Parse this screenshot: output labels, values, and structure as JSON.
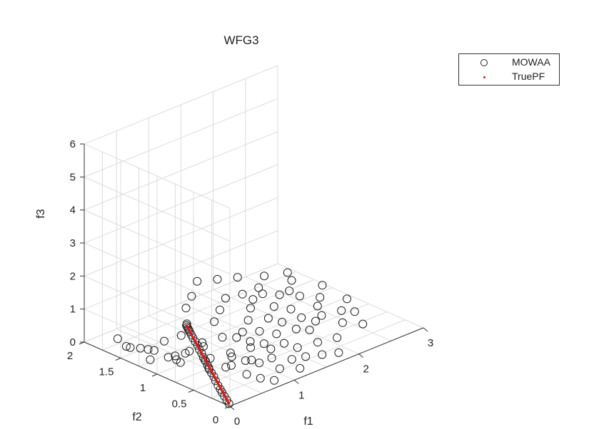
{
  "chart_data": {
    "type": "scatter",
    "projection": "3d",
    "title": "WFG3",
    "xlabel": "f1",
    "ylabel": "f2",
    "zlabel": "f3",
    "xlim": [
      0,
      3
    ],
    "ylim": [
      0,
      2
    ],
    "zlim": [
      0,
      6
    ],
    "xticks": [
      "0",
      "1",
      "2",
      "3"
    ],
    "yticks": [
      "0",
      "0.5",
      "1",
      "1.5",
      "2"
    ],
    "zticks": [
      "0",
      "1",
      "2",
      "3",
      "4",
      "5",
      "6"
    ],
    "grid": true,
    "legend_position": "top-right",
    "colors": {
      "mowaa": "#222222",
      "truepf": "#d41c1c",
      "grid": "#dcdcdc",
      "axis": "#333333"
    },
    "series": [
      {
        "name": "MOWAA",
        "marker": "circle-open",
        "points": [
          [
            0.02,
            0.03,
            0.03
          ],
          [
            0.04,
            0.08,
            0.08
          ],
          [
            0.06,
            0.13,
            0.13
          ],
          [
            0.08,
            0.18,
            0.18
          ],
          [
            0.1,
            0.22,
            0.22
          ],
          [
            0.12,
            0.27,
            0.27
          ],
          [
            0.15,
            0.33,
            0.33
          ],
          [
            0.18,
            0.38,
            0.38
          ],
          [
            0.2,
            0.43,
            0.43
          ],
          [
            0.22,
            0.48,
            0.48
          ],
          [
            0.25,
            0.53,
            0.53
          ],
          [
            0.28,
            0.58,
            0.58
          ],
          [
            0.3,
            0.63,
            0.63
          ],
          [
            0.33,
            0.68,
            0.68
          ],
          [
            0.35,
            0.73,
            0.73
          ],
          [
            0.38,
            0.78,
            0.78
          ],
          [
            0.4,
            0.83,
            0.83
          ],
          [
            0.42,
            0.88,
            0.88
          ],
          [
            0.44,
            0.92,
            0.92
          ],
          [
            0.46,
            0.96,
            0.96
          ],
          [
            0.47,
            0.98,
            0.98
          ],
          [
            0.48,
            1.0,
            1.0
          ],
          [
            0.49,
            1.02,
            1.02
          ],
          [
            0.5,
            1.04,
            1.04
          ],
          [
            0.4,
            1.2,
            0.0
          ],
          [
            0.35,
            1.35,
            0.1
          ],
          [
            0.2,
            1.6,
            0.1
          ],
          [
            0.25,
            1.45,
            0.15
          ],
          [
            0.45,
            1.15,
            0.05
          ],
          [
            0.5,
            1.0,
            0.3
          ],
          [
            0.55,
            1.1,
            0.1
          ],
          [
            0.6,
            0.8,
            0.2
          ],
          [
            0.7,
            0.6,
            0.1
          ],
          [
            0.8,
            0.7,
            0.3
          ],
          [
            0.9,
            0.5,
            0.2
          ],
          [
            1.0,
            0.6,
            0.4
          ],
          [
            1.1,
            0.4,
            0.2
          ],
          [
            1.2,
            0.5,
            0.3
          ],
          [
            1.3,
            0.3,
            0.1
          ],
          [
            1.4,
            0.6,
            0.5
          ],
          [
            1.5,
            0.4,
            0.2
          ],
          [
            1.6,
            0.7,
            0.6
          ],
          [
            1.7,
            0.3,
            0.3
          ],
          [
            1.8,
            0.5,
            0.4
          ],
          [
            1.9,
            0.7,
            0.5
          ],
          [
            2.0,
            0.3,
            0.2
          ],
          [
            2.1,
            0.6,
            0.5
          ],
          [
            2.2,
            0.4,
            0.4
          ],
          [
            2.3,
            0.8,
            0.7
          ],
          [
            2.4,
            0.3,
            0.3
          ],
          [
            2.5,
            0.5,
            0.4
          ],
          [
            0.6,
            1.2,
            0.5
          ],
          [
            0.7,
            1.0,
            0.4
          ],
          [
            0.8,
            1.3,
            0.6
          ],
          [
            0.9,
            0.9,
            0.5
          ],
          [
            1.0,
            1.1,
            0.7
          ],
          [
            1.1,
            0.8,
            0.6
          ],
          [
            1.2,
            1.2,
            0.8
          ],
          [
            1.3,
            0.9,
            0.7
          ],
          [
            1.4,
            1.3,
            0.9
          ],
          [
            1.5,
            0.8,
            0.7
          ],
          [
            1.6,
            1.1,
            0.9
          ],
          [
            1.7,
            0.9,
            0.8
          ],
          [
            1.8,
            1.2,
            1.0
          ],
          [
            1.9,
            1.0,
            0.9
          ],
          [
            2.0,
            1.3,
            1.1
          ],
          [
            2.1,
            0.9,
            0.8
          ],
          [
            2.2,
            1.1,
            1.0
          ],
          [
            0.5,
            0.5,
            0.3
          ],
          [
            0.6,
            0.3,
            0.2
          ],
          [
            0.7,
            0.2,
            0.1
          ],
          [
            0.8,
            0.1,
            0.05
          ],
          [
            1.0,
            0.2,
            0.15
          ],
          [
            1.2,
            0.1,
            0.1
          ],
          [
            1.4,
            0.2,
            0.2
          ],
          [
            1.6,
            0.15,
            0.15
          ],
          [
            1.8,
            0.1,
            0.1
          ],
          [
            0.4,
            0.7,
            0.4
          ],
          [
            0.9,
            1.4,
            0.9
          ],
          [
            1.1,
            1.5,
            1.0
          ],
          [
            1.3,
            1.6,
            1.2
          ],
          [
            1.5,
            1.5,
            1.2
          ],
          [
            1.7,
            1.4,
            1.2
          ],
          [
            0.3,
            1.0,
            0.2
          ],
          [
            0.2,
            1.3,
            0.3
          ],
          [
            0.15,
            1.5,
            0.2
          ],
          [
            0.65,
            0.55,
            0.45
          ],
          [
            0.75,
            0.45,
            0.35
          ],
          [
            0.85,
            0.35,
            0.3
          ],
          [
            0.95,
            0.75,
            0.6
          ],
          [
            1.05,
            0.65,
            0.5
          ],
          [
            1.15,
            0.55,
            0.45
          ],
          [
            1.25,
            0.7,
            0.6
          ],
          [
            1.35,
            0.45,
            0.4
          ],
          [
            1.45,
            1.0,
            0.85
          ],
          [
            1.55,
            1.2,
            1.0
          ],
          [
            1.65,
            0.55,
            0.5
          ],
          [
            1.75,
            1.1,
            0.95
          ],
          [
            1.85,
            0.8,
            0.7
          ],
          [
            1.95,
            0.55,
            0.5
          ],
          [
            2.05,
            1.0,
            0.9
          ],
          [
            2.15,
            0.7,
            0.65
          ],
          [
            2.25,
            1.2,
            1.1
          ],
          [
            2.35,
            0.55,
            0.5
          ],
          [
            2.45,
            0.9,
            0.85
          ],
          [
            2.55,
            0.65,
            0.6
          ],
          [
            0.55,
            0.85,
            0.55
          ],
          [
            0.45,
            1.3,
            0.35
          ],
          [
            0.35,
            0.6,
            0.3
          ],
          [
            0.25,
            0.9,
            0.25
          ],
          [
            0.12,
            1.2,
            0.15
          ],
          [
            0.18,
            1.7,
            0.25
          ]
        ]
      },
      {
        "name": "TruePF",
        "marker": "point",
        "segment": [
          [
            0.02,
            0.03,
            0.03
          ],
          [
            0.5,
            1.04,
            1.04
          ]
        ]
      }
    ]
  }
}
